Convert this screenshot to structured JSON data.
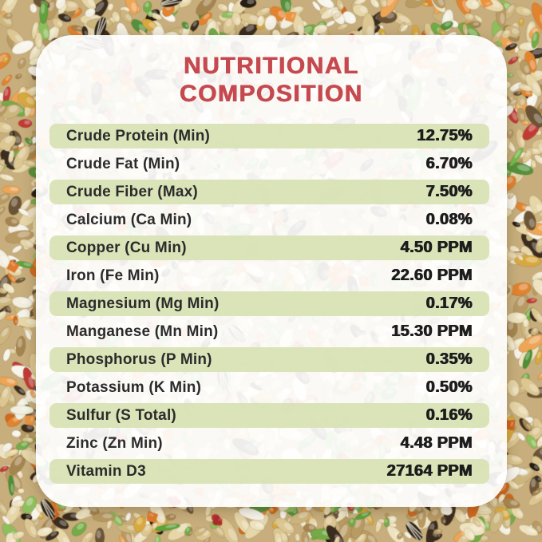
{
  "title": {
    "line1": "NUTRITIONAL",
    "line2": "COMPOSITION"
  },
  "colors": {
    "title_red": "#c5494f",
    "row_green": "rgba(216,226,179,0.92)",
    "card_white": "rgba(255,255,255,0.92)",
    "text_dark": "#2b2b2b"
  },
  "table": {
    "rows": [
      {
        "label": "Crude Protein (Min)",
        "value": "12.75%"
      },
      {
        "label": "Crude Fat (Min)",
        "value": "6.70%"
      },
      {
        "label": "Crude Fiber (Max)",
        "value": "7.50%"
      },
      {
        "label": "Calcium (Ca Min)",
        "value": "0.08%"
      },
      {
        "label": "Copper (Cu Min)",
        "value": "4.50 PPM"
      },
      {
        "label": "Iron (Fe Min)",
        "value": "22.60 PPM"
      },
      {
        "label": "Magnesium (Mg Min)",
        "value": "0.17%"
      },
      {
        "label": "Manganese (Mn Min)",
        "value": "15.30 PPM"
      },
      {
        "label": "Phosphorus (P Min)",
        "value": "0.35%"
      },
      {
        "label": "Potassium (K Min)",
        "value": "0.50%"
      },
      {
        "label": "Sulfur (S Total)",
        "value": "0.16%"
      },
      {
        "label": "Zinc (Zn Min)",
        "value": "4.48 PPM"
      },
      {
        "label": "Vitamin D3",
        "value": "27164 PPM"
      }
    ]
  }
}
